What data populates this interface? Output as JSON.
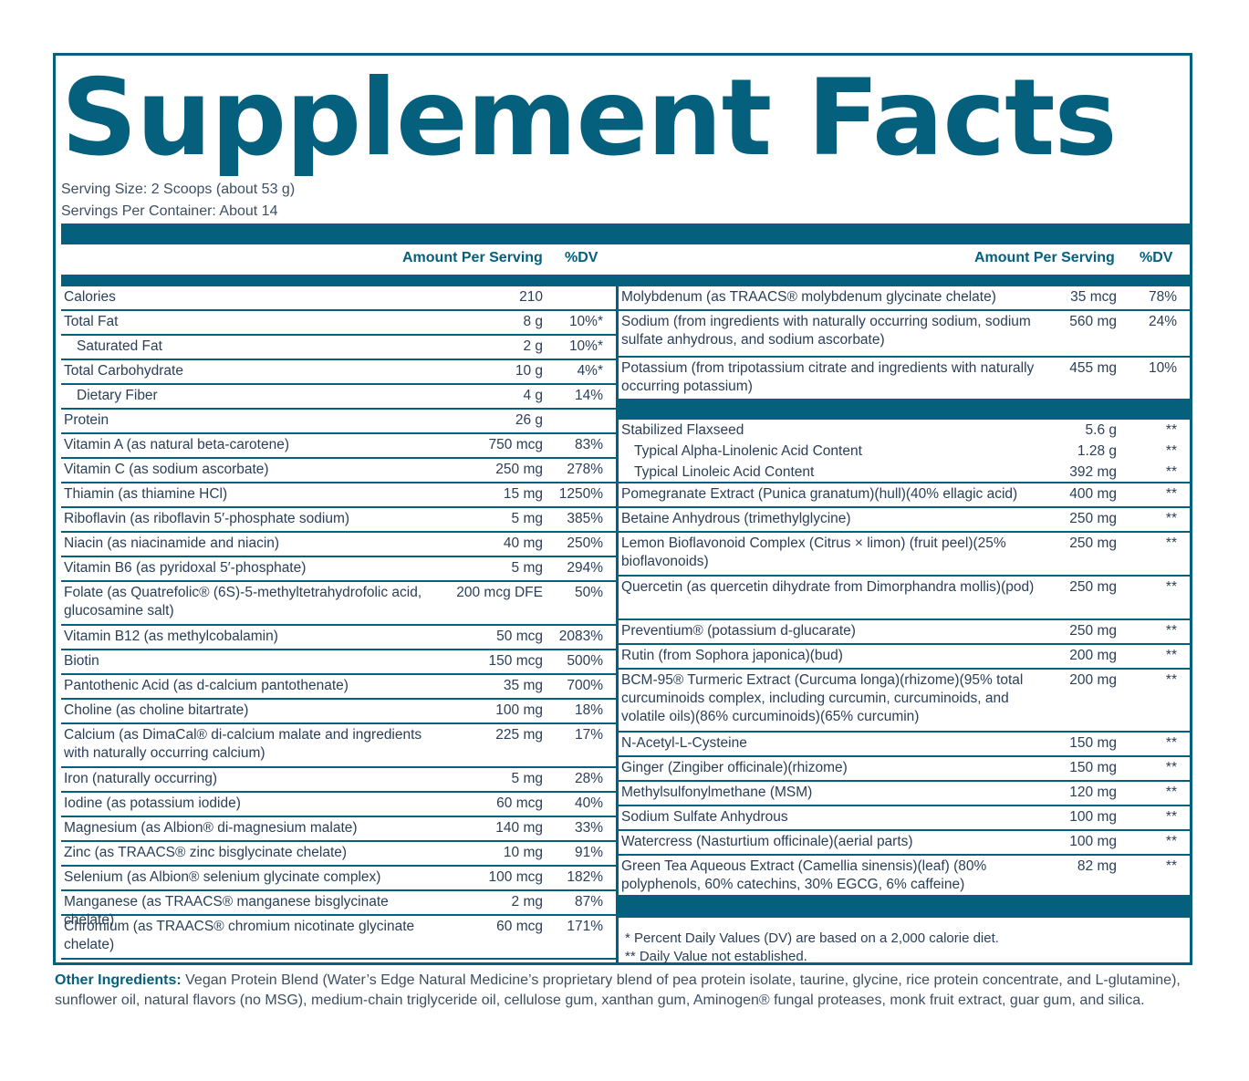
{
  "title": "Supplement Facts",
  "serving_size": "Serving Size: 2 Scoops (about 53 g)",
  "servings_per_container": "Servings Per Container: About 14",
  "col_amount": "Amount Per Serving",
  "col_dv": "%DV",
  "left_rows": [
    {
      "name": "Calories",
      "amount": "210",
      "dv": "",
      "h": 27
    },
    {
      "name": "Total Fat",
      "amount": "8 g",
      "dv": "10%*",
      "h": 27
    },
    {
      "name": "Saturated Fat",
      "amount": "2 g",
      "dv": "10%*",
      "h": 27,
      "indent": true
    },
    {
      "name": "Total Carbohydrate",
      "amount": "10 g",
      "dv": "4%*",
      "h": 27
    },
    {
      "name": "Dietary Fiber",
      "amount": "4 g",
      "dv": "14%",
      "h": 27,
      "indent": true
    },
    {
      "name": "Protein",
      "amount": "26 g",
      "dv": "",
      "h": 27
    },
    {
      "name": "Vitamin A (as natural beta-carotene)",
      "amount": "750 mcg",
      "dv": "83%",
      "h": 27
    },
    {
      "name": "Vitamin C (as sodium ascorbate)",
      "amount": "250 mg",
      "dv": "278%",
      "h": 27
    },
    {
      "name": "Thiamin (as thiamine HCl)",
      "amount": "15 mg",
      "dv": "1250%",
      "h": 27
    },
    {
      "name": "Riboflavin (as riboflavin 5′-phosphate sodium)",
      "amount": "5 mg",
      "dv": "385%",
      "h": 27
    },
    {
      "name": "Niacin (as niacinamide and niacin)",
      "amount": "40 mg",
      "dv": "250%",
      "h": 27
    },
    {
      "name": "Vitamin B6 (as pyridoxal 5′-phosphate)",
      "amount": "5 mg",
      "dv": "294%",
      "h": 27
    },
    {
      "name": "Folate (as Quatrefolic® (6S)-5-methyltetrahydrofolic acid, glucosamine salt)",
      "amount": "200 mcg DFE",
      "dv": "50%",
      "h": 48
    },
    {
      "name": "Vitamin B12 (as methylcobalamin)",
      "amount": "50 mcg",
      "dv": "2083%",
      "h": 27
    },
    {
      "name": "Biotin",
      "amount": "150 mcg",
      "dv": "500%",
      "h": 27
    },
    {
      "name": "Pantothenic Acid (as d-calcium pantothenate)",
      "amount": "35 mg",
      "dv": "700%",
      "h": 27
    },
    {
      "name": "Choline (as choline bitartrate)",
      "amount": "100 mg",
      "dv": "18%",
      "h": 27
    },
    {
      "name": "Calcium (as DimaCal® di-calcium malate and ingredients with naturally occurring calcium)",
      "amount": "225 mg",
      "dv": "17%",
      "h": 48
    },
    {
      "name": "Iron (naturally occurring)",
      "amount": "5 mg",
      "dv": "28%",
      "h": 27
    },
    {
      "name": "Iodine (as potassium iodide)",
      "amount": "60 mcg",
      "dv": "40%",
      "h": 27
    },
    {
      "name": "Magnesium (as Albion® di-magnesium malate)",
      "amount": "140 mg",
      "dv": "33%",
      "h": 27
    },
    {
      "name": "Zinc (as TRAACS® zinc bisglycinate chelate)",
      "amount": "10 mg",
      "dv": "91%",
      "h": 27
    },
    {
      "name": "Selenium (as Albion® selenium glycinate complex)",
      "amount": "100 mcg",
      "dv": "182%",
      "h": 27
    },
    {
      "name": "Manganese (as TRAACS® manganese bisglycinate chelate)",
      "amount": "2 mg",
      "dv": "87%",
      "h": 27
    },
    {
      "name": "Chromium (as TRAACS® chromium nicotinate glycinate chelate)",
      "amount": "60 mcg",
      "dv": "171%",
      "h": 48
    }
  ],
  "right_rows_top": [
    {
      "name": "Molybdenum (as TRAACS® molybdenum glycinate chelate)",
      "amount": "35 mcg",
      "dv": "78%",
      "h": 27
    },
    {
      "name": "Sodium (from ingredients with naturally occurring sodium, sodium sulfate anhydrous, and sodium ascorbate)",
      "amount": "560 mg",
      "dv": "24%",
      "h": 51
    },
    {
      "name": "Potassium (from tripotassium citrate and ingredients with naturally occurring potassium)",
      "amount": "455 mg",
      "dv": "10%",
      "h": 47
    }
  ],
  "right_rows_bottom": [
    {
      "name": "Stabilized Flaxseed",
      "amount": "5.6 g",
      "dv": "**",
      "h": 23,
      "noborder": true
    },
    {
      "name": "Typical Alpha-Linolenic Acid Content",
      "amount": "1.28 g",
      "dv": "**",
      "h": 23,
      "indent": true,
      "noborder": true
    },
    {
      "name": "Typical Linoleic Acid Content",
      "amount": "392 mg",
      "dv": "**",
      "h": 24,
      "indent": true
    },
    {
      "name": "Pomegranate Extract (Punica granatum)(hull)(40% ellagic acid)",
      "amount": "400 mg",
      "dv": "**",
      "h": 27
    },
    {
      "name": "Betaine Anhydrous (trimethylglycine)",
      "amount": "250 mg",
      "dv": "**",
      "h": 27
    },
    {
      "name": "Lemon Bioflavonoid Complex (Citrus × limon) (fruit peel)(25% bioflavonoids)",
      "amount": "250 mg",
      "dv": "**",
      "h": 48
    },
    {
      "name": "Quercetin (as quercetin dihydrate from Dimorphandra mollis)(pod)",
      "amount": "250 mg",
      "dv": "**",
      "h": 48
    },
    {
      "name": "Preventium® (potassium d-glucarate)",
      "amount": "250 mg",
      "dv": "**",
      "h": 27
    },
    {
      "name": "Rutin (from Sophora japonica)(bud)",
      "amount": "200 mg",
      "dv": "**",
      "h": 27
    },
    {
      "name": "BCM-95® Turmeric Extract (Curcuma longa)(rhizome)(95% total curcuminoids complex, including curcumin, curcuminoids, and volatile oils)(86% curcuminoids)(65% curcumin)",
      "amount": "200 mg",
      "dv": "**",
      "h": 69
    },
    {
      "name": "N-Acetyl-L-Cysteine",
      "amount": "150 mg",
      "dv": "**",
      "h": 27
    },
    {
      "name": "Ginger (Zingiber officinale)(rhizome)",
      "amount": "150 mg",
      "dv": "**",
      "h": 27
    },
    {
      "name": "Methylsulfonylmethane (MSM)",
      "amount": "120 mg",
      "dv": "**",
      "h": 27
    },
    {
      "name": "Sodium Sulfate Anhydrous",
      "amount": "100 mg",
      "dv": "**",
      "h": 27
    },
    {
      "name": "Watercress (Nasturtium officinale)(aerial parts)",
      "amount": "100 mg",
      "dv": "**",
      "h": 27
    },
    {
      "name": "Green Tea Aqueous Extract (Camellia sinensis)(leaf) (80% polyphenols, 60% catechins, 30% EGCG, 6% caffeine)",
      "amount": "82 mg",
      "dv": "**",
      "h": 43,
      "noborder": true
    }
  ],
  "footnote_1": "* Percent Daily Values (DV) are based on a 2,000 calorie diet.",
  "footnote_2": "** Daily Value not established.",
  "other_label": "Other Ingredients:",
  "other_text": "Vegan Protein Blend (Water’s Edge Natural Medicine’s proprietary blend of pea protein isolate, taurine, glycine, rice protein concentrate, and L-glutamine), sunflower oil, natural flavors (no MSG), medium-chain triglyceride oil, cellulose gum, xanthan gum, Aminogen® fungal proteases, monk fruit extract, guar gum, and silica.",
  "colors": {
    "brand": "#05607d",
    "text": "#2a3f58"
  }
}
